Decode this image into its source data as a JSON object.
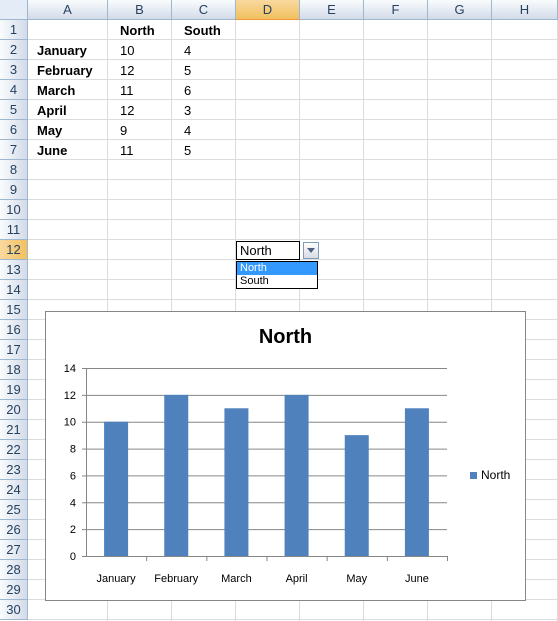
{
  "columns": [
    "A",
    "B",
    "C",
    "D",
    "E",
    "F",
    "G",
    "H"
  ],
  "selected_column": "D",
  "rows": [
    "1",
    "2",
    "3",
    "4",
    "5",
    "6",
    "7",
    "8",
    "9",
    "10",
    "11",
    "12",
    "13",
    "14",
    "15",
    "16",
    "17",
    "18",
    "19",
    "20",
    "21",
    "22",
    "23",
    "24",
    "25",
    "26",
    "27",
    "28",
    "29",
    "30"
  ],
  "selected_row": "12",
  "table": {
    "headers": [
      "North",
      "South"
    ],
    "months": [
      "January",
      "February",
      "March",
      "April",
      "May",
      "June"
    ],
    "north": [
      "10",
      "12",
      "11",
      "12",
      "9",
      "11"
    ],
    "south": [
      "4",
      "5",
      "6",
      "3",
      "4",
      "5"
    ]
  },
  "dropdown": {
    "value": "North",
    "options": [
      "North",
      "South"
    ],
    "highlighted": "North"
  },
  "colors": {
    "bar": "#4f81bd",
    "selection": "#3399ff",
    "header_selected": "#f1c15f"
  },
  "chart_data": {
    "type": "bar",
    "title": "North",
    "categories": [
      "January",
      "February",
      "March",
      "April",
      "May",
      "June"
    ],
    "series": [
      {
        "name": "North",
        "values": [
          10,
          12,
          11,
          12,
          9,
          11
        ]
      }
    ],
    "ylim": [
      0,
      14
    ],
    "yticks": [
      0,
      2,
      4,
      6,
      8,
      10,
      12,
      14
    ],
    "grid": true,
    "legend": "right"
  }
}
